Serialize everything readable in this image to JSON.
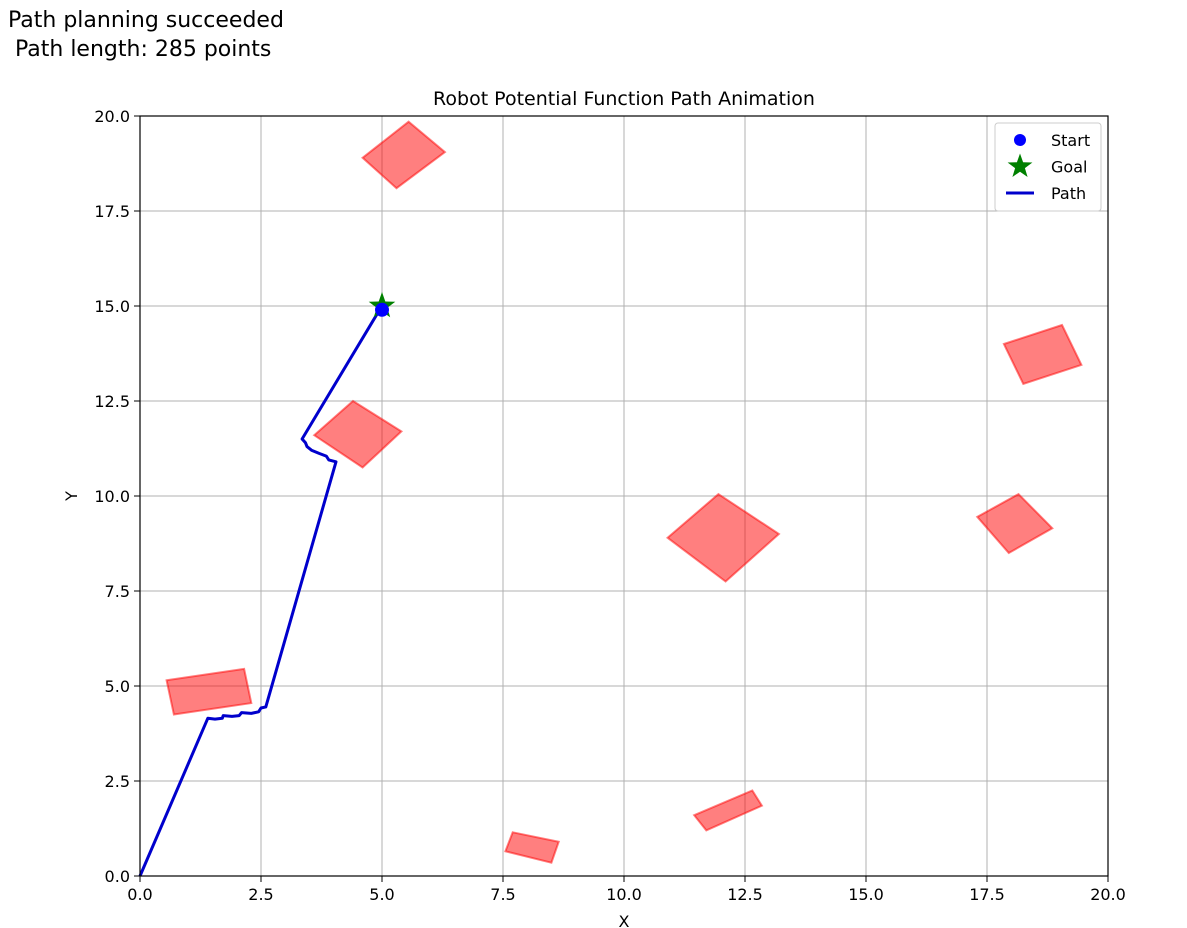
{
  "status": {
    "line1": "Path planning succeeded",
    "line2": " Path length: 285 points"
  },
  "chart_data": {
    "type": "line",
    "title": "Robot Potential Function Path Animation",
    "xlabel": "X",
    "ylabel": "Y",
    "xlim": [
      0,
      20
    ],
    "ylim": [
      0,
      20
    ],
    "xticks": [
      "0.0",
      "2.5",
      "5.0",
      "7.5",
      "10.0",
      "12.5",
      "15.0",
      "17.5",
      "20.0"
    ],
    "yticks": [
      "0.0",
      "2.5",
      "5.0",
      "7.5",
      "10.0",
      "12.5",
      "15.0",
      "17.5",
      "20.0"
    ],
    "grid": true,
    "legend_position": "top-right",
    "colors": {
      "path": "#0000cc",
      "start": "#0000ff",
      "goal": "#008000",
      "obstacle": "#ff0000"
    },
    "legend": [
      {
        "label": "Start",
        "marker": "dot"
      },
      {
        "label": "Goal",
        "marker": "star"
      },
      {
        "label": "Path",
        "marker": "line"
      }
    ],
    "start": {
      "x": 5.0,
      "y": 14.9
    },
    "goal": {
      "x": 5.0,
      "y": 15.0
    },
    "path": {
      "name": "Path",
      "points": [
        [
          0.0,
          0.0
        ],
        [
          1.4,
          4.15
        ],
        [
          1.55,
          4.13
        ],
        [
          1.7,
          4.15
        ],
        [
          1.72,
          4.22
        ],
        [
          1.9,
          4.2
        ],
        [
          2.05,
          4.22
        ],
        [
          2.1,
          4.3
        ],
        [
          2.3,
          4.28
        ],
        [
          2.45,
          4.32
        ],
        [
          2.5,
          4.42
        ],
        [
          2.6,
          4.45
        ],
        [
          4.05,
          10.9
        ],
        [
          3.9,
          10.95
        ],
        [
          3.85,
          11.05
        ],
        [
          3.7,
          11.12
        ],
        [
          3.55,
          11.2
        ],
        [
          3.45,
          11.3
        ],
        [
          3.42,
          11.4
        ],
        [
          3.35,
          11.5
        ],
        [
          4.95,
          14.9
        ]
      ]
    },
    "obstacles": [
      {
        "corners": [
          [
            4.6,
            18.9
          ],
          [
            5.55,
            19.85
          ],
          [
            6.3,
            19.05
          ],
          [
            5.3,
            18.1
          ]
        ]
      },
      {
        "corners": [
          [
            3.6,
            11.6
          ],
          [
            4.4,
            12.5
          ],
          [
            5.4,
            11.7
          ],
          [
            4.6,
            10.75
          ]
        ]
      },
      {
        "corners": [
          [
            0.55,
            5.15
          ],
          [
            2.15,
            5.45
          ],
          [
            2.3,
            4.55
          ],
          [
            0.7,
            4.25
          ]
        ]
      },
      {
        "corners": [
          [
            10.9,
            8.9
          ],
          [
            11.95,
            10.05
          ],
          [
            13.2,
            9.0
          ],
          [
            12.1,
            7.75
          ]
        ]
      },
      {
        "corners": [
          [
            17.85,
            14.0
          ],
          [
            19.05,
            14.5
          ],
          [
            19.45,
            13.45
          ],
          [
            18.25,
            12.95
          ]
        ]
      },
      {
        "corners": [
          [
            17.3,
            9.45
          ],
          [
            18.15,
            10.05
          ],
          [
            18.85,
            9.15
          ],
          [
            17.95,
            8.5
          ]
        ]
      },
      {
        "corners": [
          [
            7.7,
            1.15
          ],
          [
            8.65,
            0.9
          ],
          [
            8.5,
            0.35
          ],
          [
            7.55,
            0.65
          ]
        ]
      },
      {
        "corners": [
          [
            11.45,
            1.6
          ],
          [
            12.65,
            2.25
          ],
          [
            12.85,
            1.85
          ],
          [
            11.7,
            1.2
          ]
        ]
      }
    ]
  }
}
